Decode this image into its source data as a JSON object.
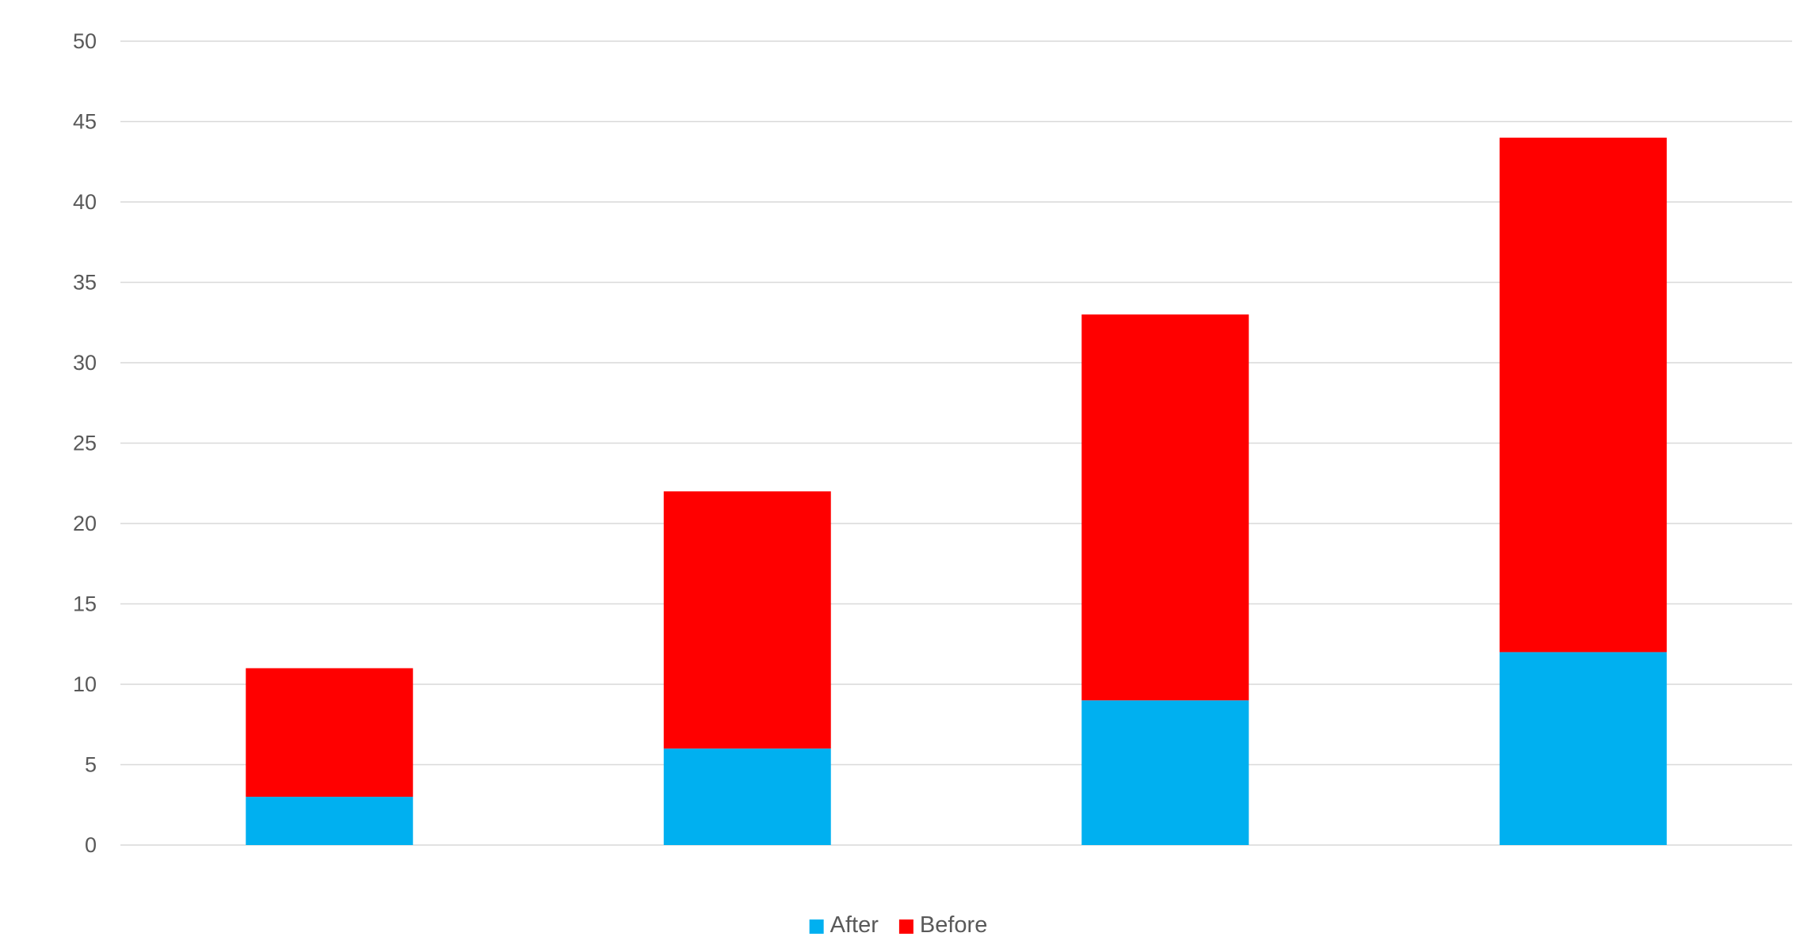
{
  "chart_data": {
    "type": "bar",
    "stacked": true,
    "categories": [
      "",
      "",
      "",
      ""
    ],
    "series": [
      {
        "name": "After",
        "color": "#00B0F0",
        "values": [
          3,
          6,
          9,
          12
        ]
      },
      {
        "name": "Before",
        "color": "#FF0000",
        "values": [
          8,
          16,
          24,
          32
        ]
      }
    ],
    "title": "",
    "xlabel": "",
    "ylabel": "",
    "ylim": [
      0,
      50
    ],
    "yticks": [
      0,
      5,
      10,
      15,
      20,
      25,
      30,
      35,
      40,
      45,
      50
    ],
    "grid": true,
    "gridline_color": "#D9D9D9",
    "text_color": "#595959",
    "legend_position": "bottom"
  }
}
